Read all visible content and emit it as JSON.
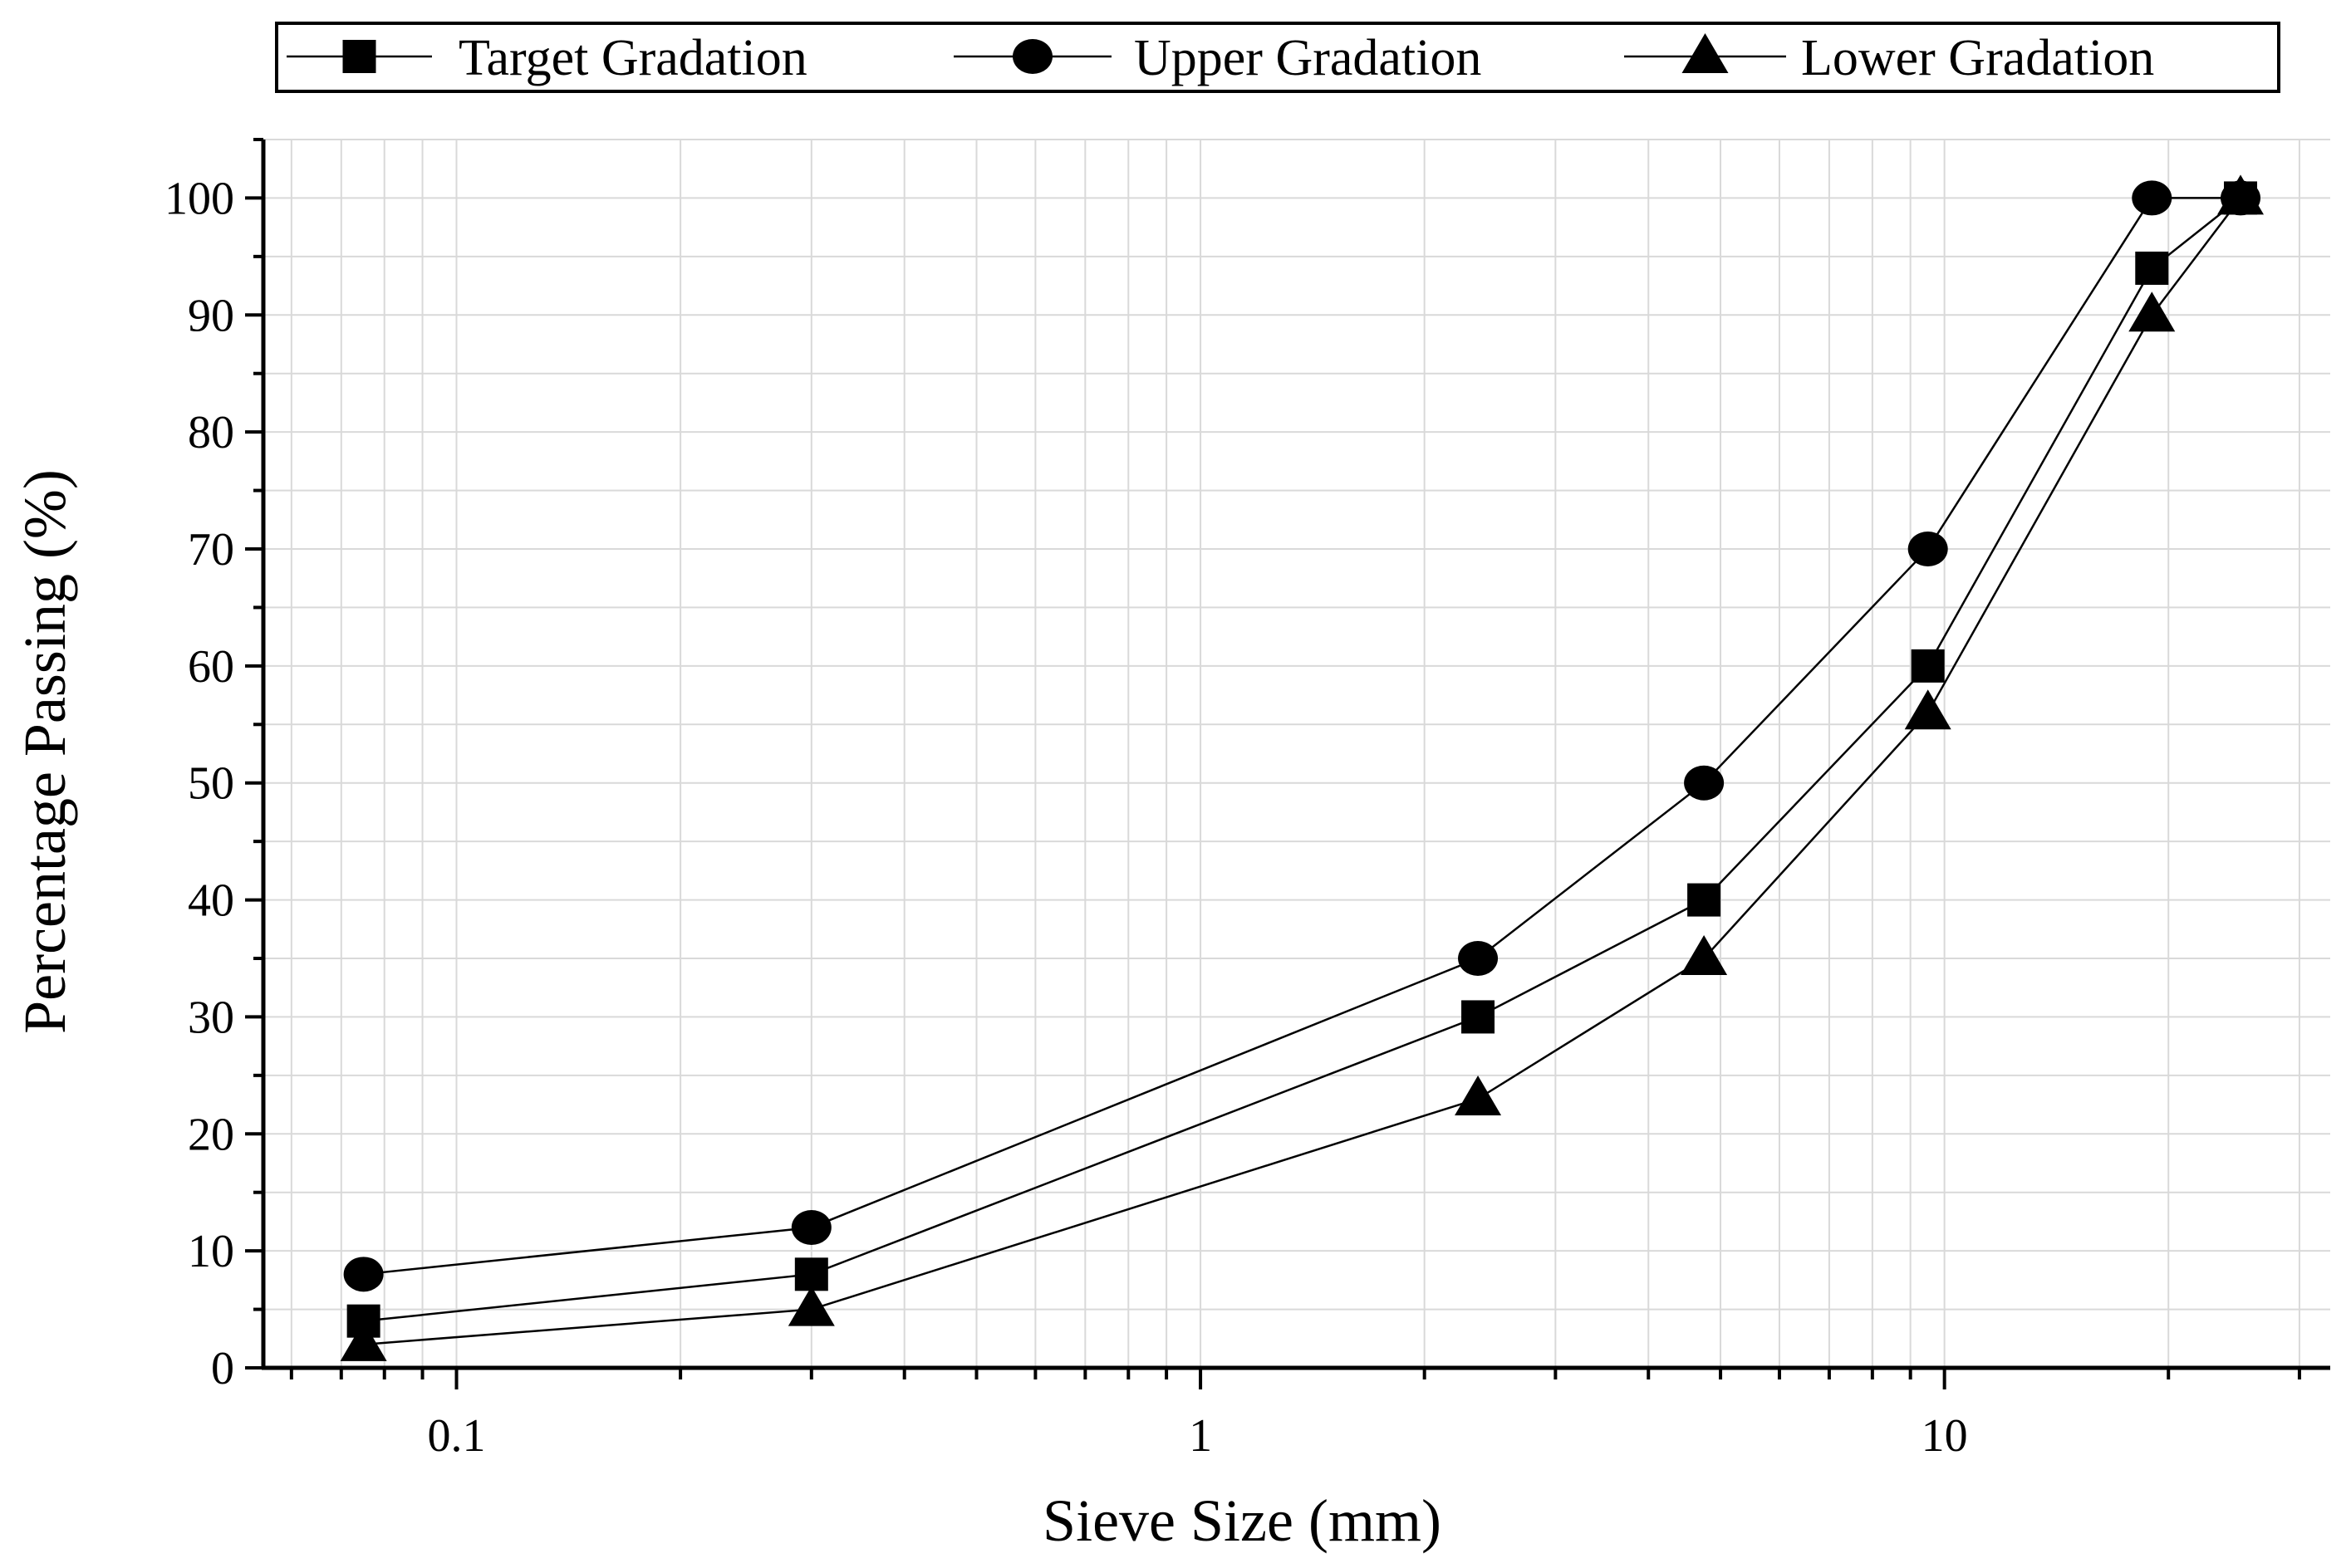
{
  "chart_data": {
    "type": "line",
    "title": "",
    "xlabel": "Sieve Size (mm)",
    "ylabel": "Percentage Passing (%)",
    "xscale": "log",
    "xlim": [
      0.055,
      33
    ],
    "ylim": [
      0,
      105
    ],
    "grid": true,
    "legend_position": "top",
    "x": [
      0.075,
      0.3,
      2.36,
      4.75,
      9.5,
      19,
      25
    ],
    "x_tick_labels": [
      "0.1",
      "1",
      "10"
    ],
    "x_tick_values": [
      0.1,
      1,
      10
    ],
    "y_ticks": [
      0,
      10,
      20,
      30,
      40,
      50,
      60,
      70,
      80,
      90,
      100
    ],
    "series": [
      {
        "name": "Target Gradation",
        "marker": "square",
        "values": [
          4,
          8,
          30,
          40,
          60,
          94,
          100
        ]
      },
      {
        "name": "Upper Gradation",
        "marker": "circle",
        "values": [
          8,
          12,
          35,
          50,
          70,
          100,
          100
        ]
      },
      {
        "name": "Lower Gradation",
        "marker": "triangle",
        "values": [
          2,
          5,
          23,
          35,
          56,
          90,
          100
        ]
      }
    ]
  }
}
